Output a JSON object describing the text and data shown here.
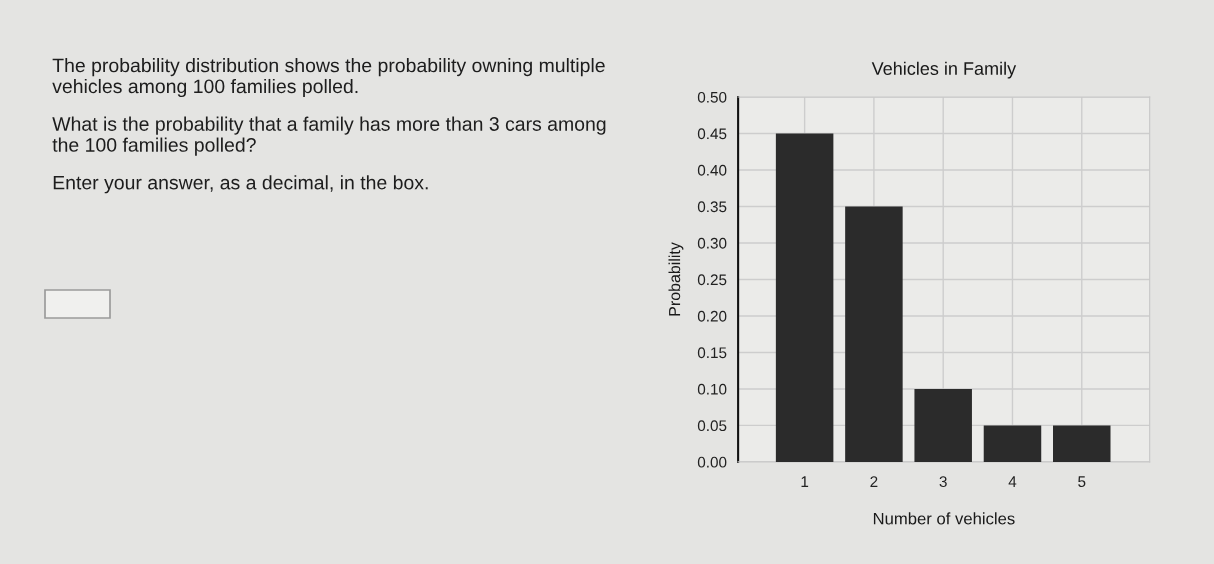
{
  "chart_data": {
    "type": "bar",
    "title": "Vehicles in Family",
    "xlabel": "Number of vehicles",
    "ylabel": "Probability",
    "categories": [
      "1",
      "2",
      "3",
      "4",
      "5"
    ],
    "values": [
      0.45,
      0.35,
      0.1,
      0.05,
      0.05
    ],
    "color": "#2b2b2b",
    "ylim": [
      0,
      0.5
    ],
    "yticks": [
      {
        "value": 0,
        "label": "0.00"
      },
      {
        "value": 0.05,
        "label": "0.05"
      },
      {
        "value": 0.1,
        "label": "0.10"
      },
      {
        "value": 0.15,
        "label": "0.15"
      },
      {
        "value": 0.2,
        "label": "0.20"
      },
      {
        "value": 0.25,
        "label": "0.25"
      },
      {
        "value": 0.3,
        "label": "0.30"
      },
      {
        "value": 0.35,
        "label": "0.35"
      },
      {
        "value": 0.4,
        "label": "0.40"
      },
      {
        "value": 0.45,
        "label": "0.45"
      },
      {
        "value": 0.5,
        "label": "0.50"
      }
    ],
    "grid": true,
    "annotations": [
      "The probability distribution shows the probability owning multiple\nvehicles among 100 families polled.",
      "What is the probability that a family has more than 3 cars among\nthe 100 families polled?",
      "Enter your answer, as a decimal, in the box."
    ]
  }
}
